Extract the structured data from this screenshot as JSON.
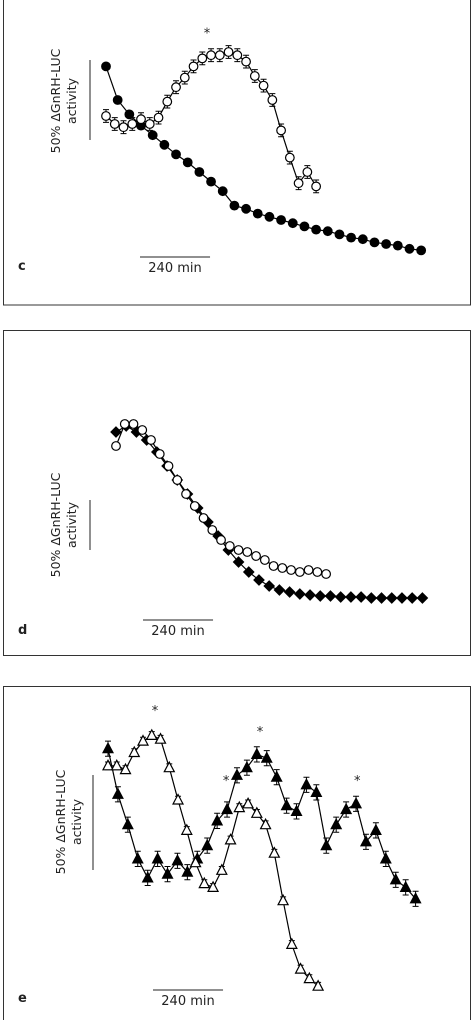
{
  "chart_data": [
    {
      "type": "line",
      "panel_label": "c",
      "x_scale_bar": {
        "value": 240,
        "label": "240 min"
      },
      "y_scale_bar": {
        "value": 50,
        "label": "50% ΔGnRH-LUC activity"
      },
      "xlim": [
        0,
        1100
      ],
      "ylim": [
        0,
        140
      ],
      "series": [
        {
          "color": "#000000",
          "marker": "circle",
          "fill": "#000000",
          "x": [
            0,
            40,
            80,
            120,
            160,
            200,
            240,
            280,
            320,
            360,
            400,
            440,
            480,
            520,
            560,
            600,
            640,
            680,
            720,
            760,
            800,
            840,
            880,
            920,
            960,
            1000,
            1040,
            1080
          ],
          "values": [
            116,
            95,
            86,
            79,
            73,
            67,
            61,
            56,
            50,
            44,
            38,
            29,
            27,
            24,
            22,
            20,
            18,
            16,
            14,
            13,
            11,
            9,
            8,
            6,
            5,
            4,
            2,
            1
          ]
        },
        {
          "color": "#000000",
          "marker": "circle",
          "fill": "#ffffff",
          "x": [
            0,
            30,
            60,
            90,
            120,
            150,
            180,
            210,
            240,
            270,
            300,
            330,
            360,
            390,
            420,
            450,
            480,
            510,
            540,
            570,
            600,
            630,
            660,
            690,
            720
          ],
          "values": [
            85,
            80,
            78,
            80,
            83,
            80,
            84,
            94,
            103,
            109,
            116,
            121,
            123,
            123,
            125,
            123,
            119,
            110,
            104,
            95,
            76,
            59,
            43,
            50,
            41
          ],
          "errors": [
            4,
            4,
            4,
            4,
            4,
            4,
            4,
            4,
            4,
            4,
            4,
            4,
            4,
            4,
            4,
            4,
            4,
            4,
            4,
            4,
            4,
            4,
            4,
            4,
            4
          ]
        }
      ],
      "annotations": [
        {
          "label": "*",
          "x": 346,
          "y": 139
        }
      ]
    },
    {
      "type": "line",
      "panel_label": "d",
      "x_scale_bar": {
        "value": 240,
        "label": "240 min"
      },
      "y_scale_bar": {
        "value": 50,
        "label": "50% ΔGnRH-LUC activity"
      },
      "xlim": [
        0,
        1100
      ],
      "ylim": [
        0,
        200
      ],
      "series": [
        {
          "color": "#000000",
          "marker": "diamond",
          "fill": "#000000",
          "x": [
            0,
            35,
            70,
            105,
            140,
            175,
            210,
            245,
            280,
            315,
            350,
            385,
            420,
            455,
            490,
            525,
            560,
            595,
            630,
            665,
            700,
            735,
            770,
            805,
            840,
            875,
            910,
            945,
            980,
            1015,
            1050
          ],
          "values": [
            168,
            174,
            168,
            160,
            148,
            134,
            120,
            106,
            92,
            78,
            64,
            50,
            38,
            28,
            20,
            14,
            10,
            8,
            6,
            5,
            4,
            4,
            3,
            3,
            3,
            2,
            2,
            2,
            2,
            2,
            2
          ]
        },
        {
          "color": "#000000",
          "marker": "circle",
          "fill": "#ffffff",
          "x": [
            0,
            30,
            60,
            90,
            120,
            150,
            180,
            210,
            240,
            270,
            300,
            330,
            360,
            390,
            420,
            450,
            480,
            510,
            540,
            570,
            600,
            630,
            660,
            690,
            720
          ],
          "values": [
            154,
            176,
            176,
            170,
            160,
            146,
            134,
            120,
            106,
            94,
            82,
            70,
            60,
            54,
            50,
            48,
            44,
            40,
            34,
            32,
            30,
            28,
            30,
            28,
            26
          ],
          "errors": [
            3,
            3,
            3,
            3,
            3,
            3,
            3,
            3,
            3,
            3,
            3,
            3,
            3,
            3,
            3,
            3,
            3,
            3,
            3,
            3,
            3,
            3,
            3,
            3,
            3
          ]
        }
      ],
      "annotations": []
    },
    {
      "type": "line",
      "panel_label": "e",
      "x_scale_bar": {
        "value": 240,
        "label": "240 min"
      },
      "y_scale_bar": {
        "value": 50,
        "label": "50% ΔGnRH-LUC activity"
      },
      "xlim": [
        0,
        1100
      ],
      "ylim": [
        0,
        150
      ],
      "series": [
        {
          "color": "#000000",
          "marker": "triangle",
          "fill": "#000000",
          "x": [
            0,
            34,
            68,
            102,
            136,
            170,
            204,
            238,
            272,
            306,
            340,
            374,
            408,
            442,
            476,
            510,
            544,
            578,
            612,
            646,
            680,
            714,
            748,
            782,
            816,
            850,
            884,
            918,
            952,
            986,
            1020,
            1054
          ],
          "values": [
            127,
            103,
            87,
            69,
            59,
            69,
            61,
            68,
            62,
            69,
            76,
            89,
            95,
            113,
            117,
            124,
            122,
            112,
            97,
            94,
            108,
            104,
            76,
            87,
            95,
            98,
            78,
            84,
            69,
            58,
            54,
            48
          ],
          "errors": [
            4,
            4,
            4,
            4,
            4,
            4,
            4,
            4,
            4,
            4,
            4,
            4,
            4,
            4,
            4,
            4,
            4,
            4,
            4,
            4,
            4,
            4,
            4,
            4,
            4,
            4,
            4,
            4,
            4,
            4,
            4,
            4
          ]
        },
        {
          "color": "#000000",
          "marker": "triangle",
          "fill": "#ffffff",
          "x": [
            0,
            30,
            60,
            90,
            120,
            150,
            180,
            210,
            240,
            270,
            300,
            330,
            360,
            390,
            420,
            450,
            480,
            510,
            540,
            570,
            600,
            630,
            660,
            690,
            720
          ],
          "values": [
            118,
            118,
            116,
            125,
            131,
            134,
            132,
            117,
            100,
            84,
            67,
            56,
            54,
            63,
            79,
            96,
            98,
            93,
            87,
            72,
            47,
            24,
            11,
            6,
            2
          ],
          "errors": [
            2,
            2,
            2,
            2,
            2,
            2,
            2,
            2,
            2,
            2,
            2,
            2,
            2,
            2,
            2,
            2,
            2,
            2,
            2,
            2,
            2,
            2,
            2,
            2,
            2
          ]
        }
      ],
      "annotations": [
        {
          "label": "*",
          "x": 161,
          "y": 149
        },
        {
          "label": "*",
          "x": 405,
          "y": 112
        },
        {
          "label": "*",
          "x": 521,
          "y": 138
        },
        {
          "label": "*",
          "x": 854,
          "y": 112
        }
      ]
    }
  ]
}
